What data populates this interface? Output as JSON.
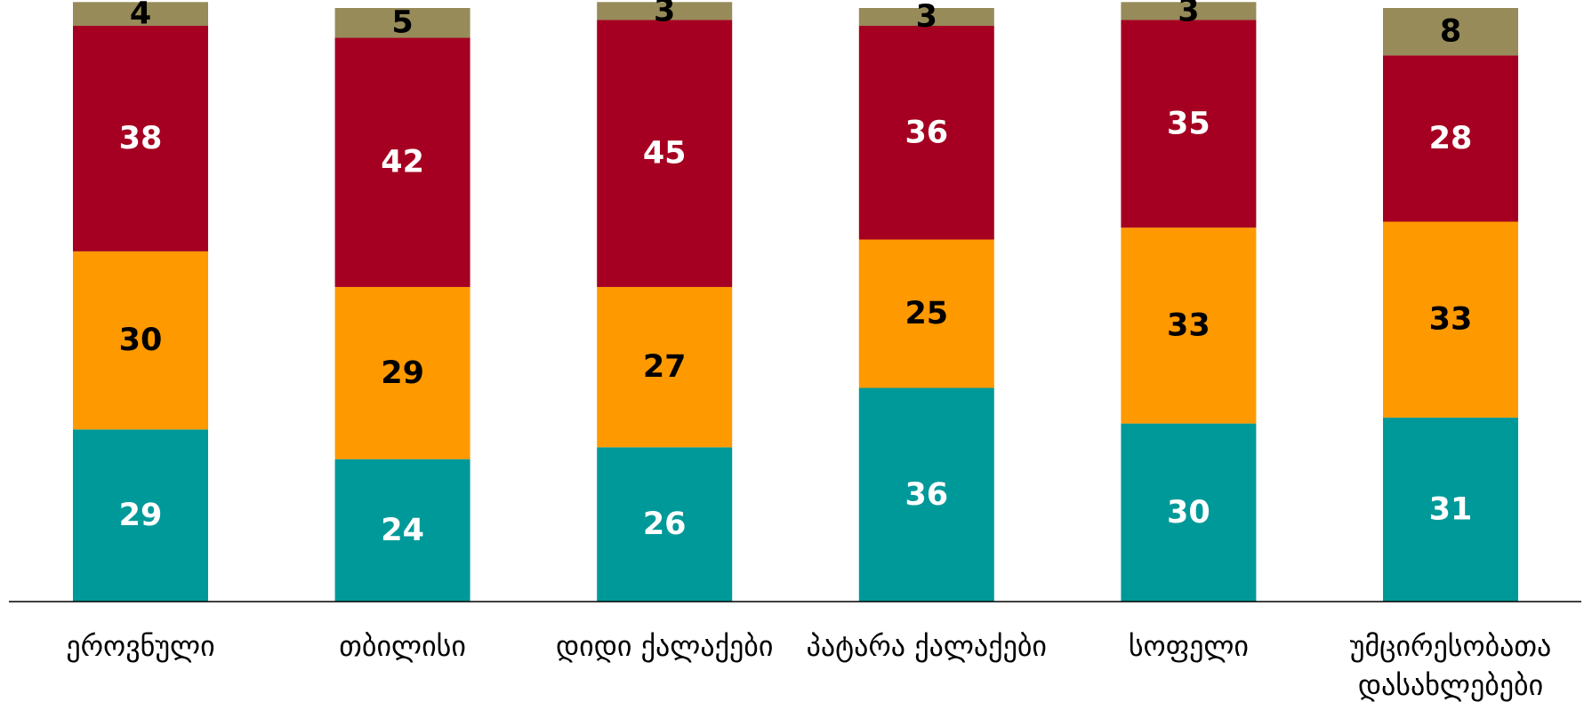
{
  "chart_data": {
    "type": "bar",
    "stacked": true,
    "orientation": "vertical",
    "title": "",
    "xlabel": "",
    "ylabel": "",
    "ylim": [
      0,
      100
    ],
    "grid": false,
    "legend": "none",
    "categories": [
      [
        "ეროვნული"
      ],
      [
        "თბილისი"
      ],
      [
        "დიდი ქალაქები"
      ],
      [
        "პატარა ქალაქები"
      ],
      [
        "სოფელი"
      ],
      [
        "უმცირესობათა",
        "დასახლებები"
      ]
    ],
    "series": [
      {
        "values": [
          29,
          24,
          26,
          36,
          30,
          31
        ],
        "color": "#009999",
        "label_color": "#ffffff"
      },
      {
        "values": [
          30,
          29,
          27,
          25,
          33,
          33
        ],
        "color": "#ff9900",
        "label_color": "#000000"
      },
      {
        "values": [
          38,
          42,
          45,
          36,
          35,
          28
        ],
        "color": "#a50021",
        "label_color": "#ffffff"
      },
      {
        "values": [
          4,
          5,
          3,
          3,
          3,
          8
        ],
        "color": "#968b59",
        "label_color": "#000000"
      }
    ]
  }
}
